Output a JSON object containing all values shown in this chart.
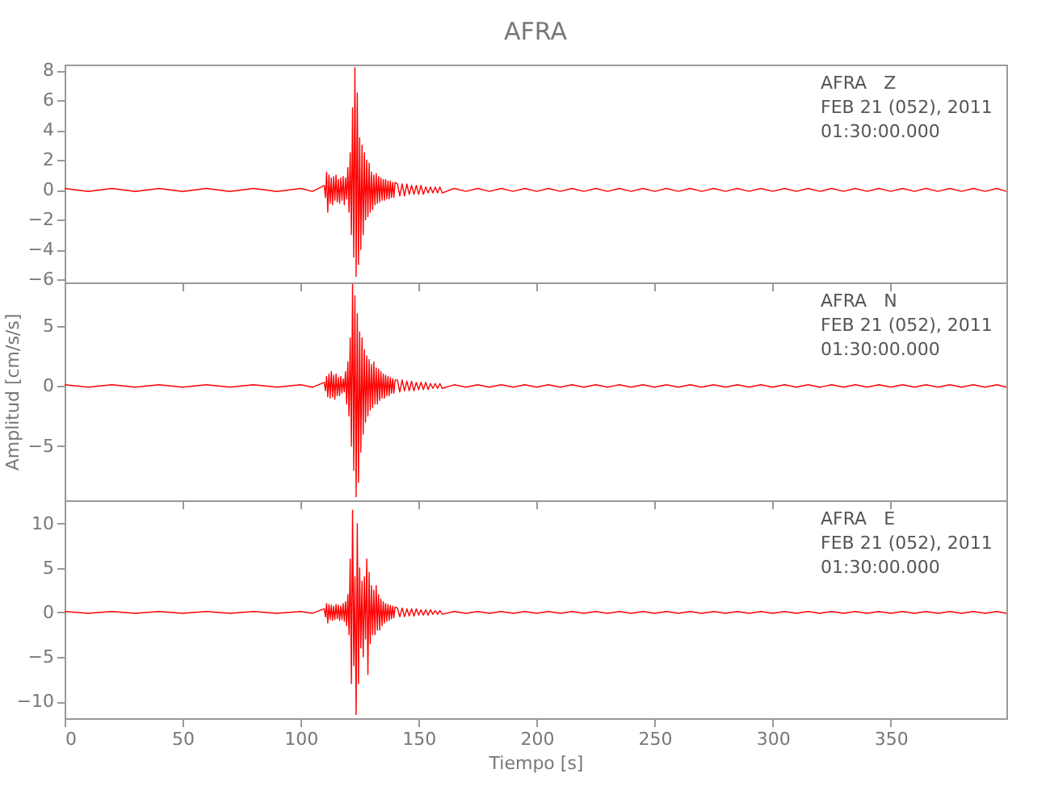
{
  "chart_data": [
    {
      "type": "line",
      "title": "AFRA",
      "tick_labels": "y",
      "annotations": [
        "AFRA   Z",
        "FEB 21 (052), 2011",
        "01:30:00.000"
      ],
      "xlim": [
        0,
        399
      ],
      "xticks": [
        0,
        50,
        100,
        150,
        200,
        250,
        300,
        350
      ],
      "ylim": [
        -6.2,
        8.4
      ],
      "yticks": [
        -6,
        -4,
        -2,
        0,
        2,
        4,
        6,
        8
      ],
      "x": [
        0,
        10,
        20,
        30,
        40,
        50,
        60,
        70,
        80,
        90,
        100,
        105,
        110,
        110.5,
        111,
        111.5,
        112,
        112.5,
        113,
        113.5,
        114,
        114.5,
        115,
        115.5,
        116,
        116.5,
        117,
        117.5,
        118,
        118.5,
        119,
        119.5,
        120,
        120.5,
        121,
        121.5,
        122,
        122.5,
        123,
        123.5,
        124,
        124.5,
        125,
        125.5,
        126,
        126.5,
        127,
        127.5,
        128,
        128.5,
        129,
        129.5,
        130,
        130.5,
        131,
        131.5,
        132,
        132.5,
        133,
        133.5,
        134,
        134.5,
        135,
        135.5,
        136,
        136.5,
        137,
        137.5,
        138,
        138.5,
        139,
        139.5,
        140,
        141,
        142,
        143,
        144,
        145,
        146,
        147,
        148,
        149,
        150,
        151,
        152,
        153,
        154,
        155,
        156,
        157,
        158,
        159,
        160,
        165,
        170,
        175,
        180,
        185,
        190,
        195,
        200,
        205,
        210,
        215,
        220,
        225,
        230,
        235,
        240,
        245,
        250,
        255,
        260,
        265,
        270,
        275,
        280,
        285,
        290,
        295,
        300,
        305,
        310,
        315,
        320,
        325,
        330,
        335,
        340,
        345,
        350,
        355,
        360,
        365,
        370,
        375,
        380,
        385,
        390,
        395,
        399
      ],
      "series": [
        {
          "color": "#ff0000",
          "values": [
            0.1,
            -0.1,
            0.1,
            -0.1,
            0.1,
            -0.1,
            0.1,
            -0.1,
            0.1,
            -0.1,
            0.1,
            -0.1,
            0.3,
            -0.5,
            1.2,
            -1.5,
            1.0,
            -0.9,
            0.8,
            -1.0,
            0.9,
            -0.7,
            1.0,
            -0.8,
            0.7,
            -0.9,
            0.8,
            -0.7,
            0.9,
            -1.0,
            0.8,
            -0.6,
            1.5,
            -1.5,
            2.5,
            -3.0,
            5.5,
            -4.5,
            8.2,
            -5.8,
            6.5,
            -5.0,
            3.5,
            -4.0,
            3.0,
            -3.0,
            2.5,
            -2.0,
            2.0,
            -1.8,
            1.8,
            -1.5,
            1.2,
            -1.3,
            1.0,
            -1.0,
            1.1,
            -0.9,
            0.9,
            -0.8,
            0.8,
            -0.7,
            0.7,
            -0.7,
            0.7,
            -0.6,
            0.6,
            -0.6,
            0.6,
            -0.5,
            0.5,
            -0.5,
            0.5,
            0.4,
            -0.4,
            0.4,
            -0.4,
            0.4,
            -0.3,
            0.3,
            -0.3,
            0.3,
            -0.3,
            0.3,
            -0.3,
            0.2,
            -0.2,
            0.2,
            -0.2,
            0.2,
            -0.2,
            0.2,
            -0.2,
            0.1,
            -0.1,
            0.1,
            -0.1,
            0.1,
            -0.1,
            0.1,
            -0.1,
            0.1,
            -0.1,
            0.1,
            -0.1,
            0.1,
            -0.1,
            0.1,
            -0.1,
            0.1,
            -0.1,
            0.1,
            -0.1,
            0.1,
            -0.1,
            0.1,
            -0.1,
            0.1,
            -0.1,
            0.1,
            -0.1,
            0.1,
            -0.1,
            0.1,
            -0.1,
            0.1,
            -0.1,
            0.1,
            -0.1,
            0.1,
            -0.1,
            0.1,
            -0.1,
            0.1,
            -0.1,
            0.1,
            -0.1,
            0.1,
            -0.1,
            0.1,
            -0.1
          ]
        }
      ]
    },
    {
      "type": "line",
      "ylabel": "Amplitud [cm/s/s]",
      "tick_labels": "y",
      "annotations": [
        "AFRA   N",
        "FEB 21 (052), 2011",
        "01:30:00.000"
      ],
      "xlim": [
        0,
        399
      ],
      "xticks": [
        0,
        50,
        100,
        150,
        200,
        250,
        300,
        350
      ],
      "ylim": [
        -9.5,
        8.6
      ],
      "yticks": [
        -5,
        0,
        5
      ],
      "x": [
        0,
        10,
        20,
        30,
        40,
        50,
        60,
        70,
        80,
        90,
        100,
        105,
        110,
        110.5,
        111,
        111.5,
        112,
        112.5,
        113,
        113.5,
        114,
        114.5,
        115,
        115.5,
        116,
        116.5,
        117,
        117.5,
        118,
        118.5,
        119,
        119.5,
        120,
        120.5,
        121,
        121.5,
        122,
        122.5,
        123,
        123.5,
        124,
        124.5,
        125,
        125.5,
        126,
        126.5,
        127,
        127.5,
        128,
        128.5,
        129,
        129.5,
        130,
        130.5,
        131,
        131.5,
        132,
        132.5,
        133,
        133.5,
        134,
        134.5,
        135,
        135.5,
        136,
        136.5,
        137,
        137.5,
        138,
        138.5,
        139,
        139.5,
        140,
        141,
        142,
        143,
        144,
        145,
        146,
        147,
        148,
        149,
        150,
        151,
        152,
        153,
        154,
        155,
        156,
        157,
        158,
        159,
        160,
        165,
        170,
        175,
        180,
        185,
        190,
        195,
        200,
        205,
        210,
        215,
        220,
        225,
        230,
        235,
        240,
        245,
        250,
        255,
        260,
        265,
        270,
        275,
        280,
        285,
        290,
        295,
        300,
        305,
        310,
        315,
        320,
        325,
        330,
        335,
        340,
        345,
        350,
        355,
        360,
        365,
        370,
        375,
        380,
        385,
        390,
        395,
        399
      ],
      "series": [
        {
          "color": "#ff0000",
          "values": [
            0.1,
            -0.1,
            0.1,
            -0.1,
            0.1,
            -0.1,
            0.1,
            -0.1,
            0.1,
            -0.1,
            0.1,
            -0.1,
            0.3,
            -0.4,
            0.8,
            -0.9,
            1.0,
            -1.0,
            1.2,
            -0.9,
            0.9,
            -1.1,
            1.0,
            -0.8,
            0.7,
            -0.8,
            0.8,
            -0.6,
            0.6,
            -0.5,
            1.2,
            -1.5,
            2.0,
            -2.5,
            4.0,
            -5.0,
            8.5,
            -7.0,
            7.5,
            -9.2,
            6.0,
            -8.0,
            4.5,
            -5.5,
            4.0,
            -4.0,
            3.0,
            -3.0,
            2.5,
            -2.5,
            2.2,
            -2.0,
            1.8,
            -1.8,
            2.0,
            -1.5,
            1.5,
            -1.5,
            1.4,
            -1.2,
            1.2,
            -1.0,
            1.0,
            -1.0,
            0.9,
            -0.8,
            0.8,
            -0.8,
            0.7,
            -0.6,
            0.6,
            -0.6,
            0.5,
            0.5,
            -0.5,
            0.5,
            -0.4,
            0.4,
            -0.4,
            0.4,
            -0.4,
            0.3,
            -0.3,
            0.3,
            -0.3,
            0.3,
            -0.3,
            0.2,
            -0.2,
            0.2,
            -0.2,
            0.2,
            -0.2,
            0.1,
            -0.1,
            0.1,
            -0.1,
            0.1,
            -0.1,
            0.1,
            -0.1,
            0.1,
            -0.1,
            0.1,
            -0.1,
            0.1,
            -0.1,
            0.1,
            -0.1,
            0.1,
            -0.1,
            0.1,
            -0.1,
            0.1,
            -0.1,
            0.1,
            -0.1,
            0.1,
            -0.1,
            0.1,
            -0.1,
            0.1,
            -0.1,
            0.1,
            -0.1,
            0.1,
            -0.1,
            0.1,
            -0.1,
            0.1,
            -0.1,
            0.1,
            -0.1,
            0.1,
            -0.1,
            0.1,
            -0.1,
            0.1,
            -0.1,
            0.1,
            -0.1
          ]
        }
      ]
    },
    {
      "type": "line",
      "xlabel": "Tiempo [s]",
      "annotations": [
        "AFRA   E",
        "FEB 21 (052), 2011",
        "01:30:00.000"
      ],
      "xlim": [
        0,
        399
      ],
      "xticks": [
        0,
        50,
        100,
        150,
        200,
        250,
        300,
        350
      ],
      "ylim": [
        -11.9,
        12.6
      ],
      "yticks": [
        -10,
        -5,
        0,
        5,
        10
      ],
      "x": [
        0,
        10,
        20,
        30,
        40,
        50,
        60,
        70,
        80,
        90,
        100,
        105,
        110,
        110.5,
        111,
        111.5,
        112,
        112.5,
        113,
        113.5,
        114,
        114.5,
        115,
        115.5,
        116,
        116.5,
        117,
        117.5,
        118,
        118.5,
        119,
        119.5,
        120,
        120.5,
        121,
        121.5,
        122,
        122.5,
        123,
        123.5,
        124,
        124.5,
        125,
        125.5,
        126,
        126.5,
        127,
        127.5,
        128,
        128.5,
        129,
        129.5,
        130,
        130.5,
        131,
        131.5,
        132,
        132.5,
        133,
        133.5,
        134,
        134.5,
        135,
        135.5,
        136,
        136.5,
        137,
        137.5,
        138,
        138.5,
        139,
        139.5,
        140,
        141,
        142,
        143,
        144,
        145,
        146,
        147,
        148,
        149,
        150,
        151,
        152,
        153,
        154,
        155,
        156,
        157,
        158,
        159,
        160,
        165,
        170,
        175,
        180,
        185,
        190,
        195,
        200,
        205,
        210,
        215,
        220,
        225,
        230,
        235,
        240,
        245,
        250,
        255,
        260,
        265,
        270,
        275,
        280,
        285,
        290,
        295,
        300,
        305,
        310,
        315,
        320,
        325,
        330,
        335,
        340,
        345,
        350,
        355,
        360,
        365,
        370,
        375,
        380,
        385,
        390,
        395,
        399
      ],
      "series": [
        {
          "color": "#ff0000",
          "values": [
            0.1,
            -0.1,
            0.1,
            -0.1,
            0.1,
            -0.1,
            0.1,
            -0.1,
            0.1,
            -0.1,
            0.1,
            -0.1,
            0.4,
            -0.5,
            1.0,
            -1.2,
            0.9,
            -0.8,
            0.8,
            -0.9,
            0.7,
            -0.8,
            0.9,
            -0.7,
            0.8,
            -0.9,
            0.7,
            -0.8,
            1.0,
            -1.0,
            1.2,
            -1.5,
            2.0,
            -2.5,
            6.0,
            -8.0,
            11.5,
            -6.0,
            4.0,
            -11.5,
            10.0,
            -8.0,
            5.0,
            -4.0,
            3.5,
            -5.0,
            4.0,
            -3.0,
            6.0,
            -7.0,
            4.5,
            -3.5,
            3.0,
            -2.5,
            2.5,
            -2.5,
            3.0,
            -2.0,
            2.0,
            -2.0,
            1.5,
            -1.5,
            1.2,
            -1.2,
            1.0,
            -1.0,
            0.9,
            -0.9,
            0.8,
            -0.7,
            0.7,
            -0.6,
            0.6,
            0.5,
            -0.5,
            0.5,
            -0.5,
            0.4,
            -0.4,
            0.4,
            -0.4,
            0.4,
            -0.3,
            0.3,
            -0.3,
            0.3,
            -0.3,
            0.3,
            -0.2,
            0.2,
            -0.2,
            0.2,
            -0.2,
            0.1,
            -0.1,
            0.1,
            -0.1,
            0.1,
            -0.1,
            0.1,
            -0.1,
            0.1,
            -0.1,
            0.1,
            -0.1,
            0.1,
            -0.1,
            0.1,
            -0.1,
            0.1,
            -0.1,
            0.1,
            -0.1,
            0.1,
            -0.1,
            0.1,
            -0.1,
            0.1,
            -0.1,
            0.1,
            -0.1,
            0.1,
            -0.1,
            0.1,
            -0.1,
            0.1,
            -0.1,
            0.1,
            -0.1,
            0.1,
            -0.1,
            0.1,
            -0.1,
            0.1,
            -0.1,
            0.1,
            -0.1,
            0.1,
            -0.1,
            0.1,
            -0.1
          ]
        }
      ]
    }
  ]
}
